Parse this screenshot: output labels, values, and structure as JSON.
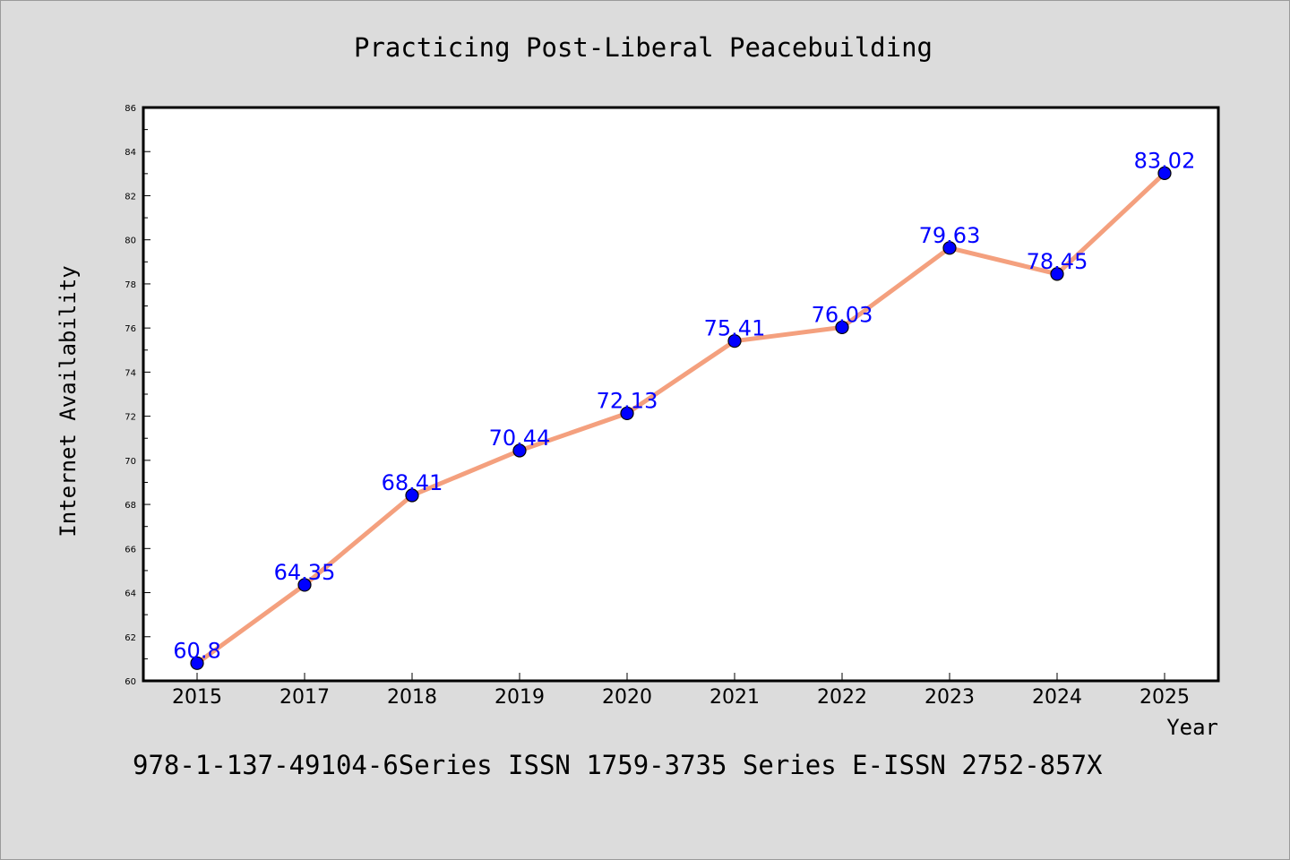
{
  "chart_data": {
    "type": "line",
    "title": "Practicing Post-Liberal Peacebuilding",
    "xlabel": "Year",
    "ylabel": "Internet Availability",
    "categories": [
      "2015",
      "2017",
      "2018",
      "2019",
      "2020",
      "2021",
      "2022",
      "2023",
      "2024",
      "2025"
    ],
    "values": [
      60.8,
      64.35,
      68.41,
      70.44,
      72.13,
      75.41,
      76.03,
      79.63,
      78.45,
      83.02
    ],
    "data_labels": [
      "60.8",
      "64.35",
      "68.41",
      "70.44",
      "72.13",
      "75.41",
      "76.03",
      "79.63",
      "78.45",
      "83.02"
    ],
    "ylim": [
      60,
      86
    ],
    "y_ticks": [
      "60",
      "62",
      "64",
      "66",
      "68",
      "70",
      "72",
      "74",
      "76",
      "78",
      "80",
      "82",
      "84",
      "86"
    ],
    "grid": false,
    "legend": "none",
    "footer": "978-1-137-49104-6Series ISSN 1759-3735 Series E-ISSN 2752-857X",
    "colors": {
      "line": "#f4a07e",
      "marker": "#0000ff",
      "data_label": "#0000ff",
      "background": "#dcdcdc",
      "plot_background": "#ffffff"
    }
  }
}
